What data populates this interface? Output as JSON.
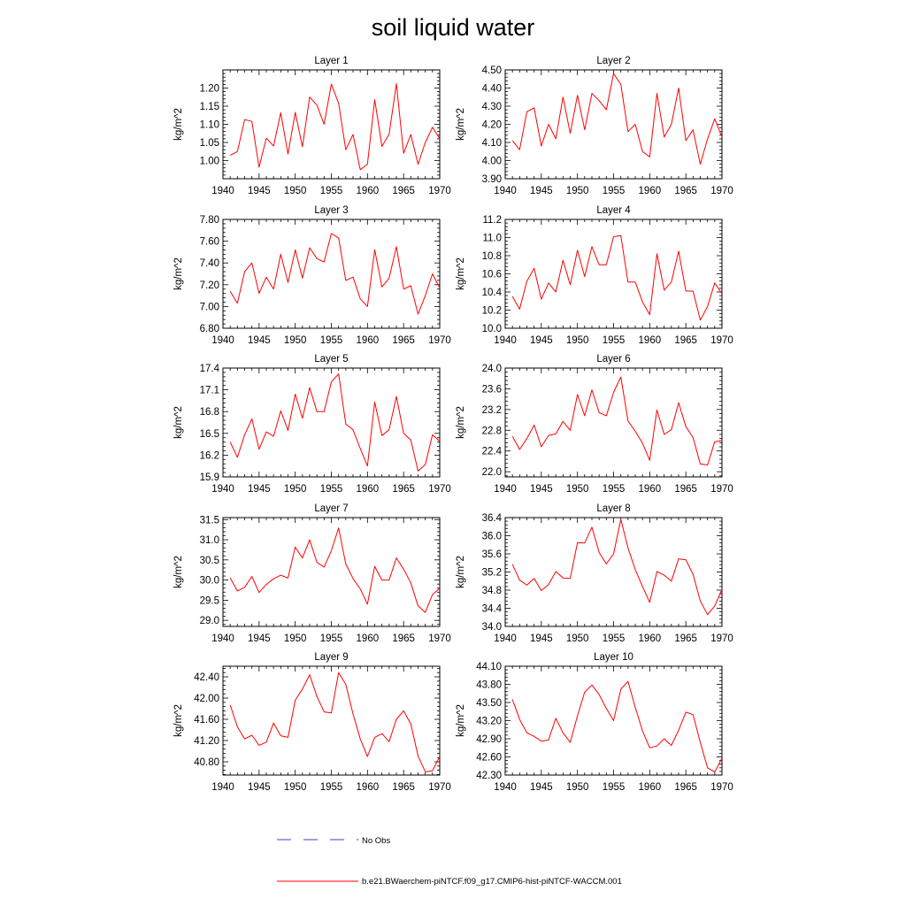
{
  "title": "soil liquid water",
  "legend": [
    {
      "label": "No Obs",
      "color": "#3b3bd6",
      "style": "dashed"
    },
    {
      "label": "b.e21.BWaerchem-piNTCF.f09_g17.CMIP6-hist-piNTCF-WACCM.001",
      "color": "#ff0000",
      "style": "solid"
    }
  ],
  "chart_data": [
    {
      "type": "line",
      "title": "Layer 1",
      "ylabel": "kg/m^2",
      "xlim": [
        1940,
        1970
      ],
      "ylim": [
        0.95,
        1.25
      ],
      "xticks": [
        "1940",
        "1945",
        "1950",
        "1955",
        "1960",
        "1965",
        "1970"
      ],
      "yticks": [
        "1.00",
        "1.05",
        "1.10",
        "1.15",
        "1.20"
      ],
      "series": [
        {
          "color": "#ff0000",
          "x": [
            1941,
            1942,
            1943,
            1944,
            1945,
            1946,
            1947,
            1948,
            1949,
            1950,
            1951,
            1952,
            1953,
            1954,
            1955,
            1956,
            1957,
            1958,
            1959,
            1960,
            1961,
            1962,
            1963,
            1964,
            1965,
            1966,
            1967,
            1968,
            1969,
            1970
          ],
          "values": [
            1.015,
            1.025,
            1.113,
            1.108,
            0.982,
            1.062,
            1.04,
            1.132,
            1.018,
            1.133,
            1.038,
            1.175,
            1.153,
            1.1,
            1.211,
            1.158,
            1.03,
            1.072,
            0.975,
            0.99,
            1.168,
            1.039,
            1.073,
            1.212,
            1.02,
            1.072,
            0.99,
            1.05,
            1.092,
            1.06
          ]
        }
      ]
    },
    {
      "type": "line",
      "title": "Layer 2",
      "ylabel": "kg/m^2",
      "xlim": [
        1940,
        1970
      ],
      "ylim": [
        3.9,
        4.5
      ],
      "xticks": [
        "1940",
        "1945",
        "1950",
        "1955",
        "1960",
        "1965",
        "1970"
      ],
      "yticks": [
        "3.90",
        "4.00",
        "4.10",
        "4.20",
        "4.30",
        "4.40",
        "4.50"
      ],
      "series": [
        {
          "color": "#ff0000",
          "x": [
            1941,
            1942,
            1943,
            1944,
            1945,
            1946,
            1947,
            1948,
            1949,
            1950,
            1951,
            1952,
            1953,
            1954,
            1955,
            1956,
            1957,
            1958,
            1959,
            1960,
            1961,
            1962,
            1963,
            1964,
            1965,
            1966,
            1967,
            1968,
            1969,
            1970
          ],
          "values": [
            4.11,
            4.06,
            4.27,
            4.29,
            4.08,
            4.2,
            4.12,
            4.35,
            4.15,
            4.36,
            4.17,
            4.37,
            4.33,
            4.28,
            4.48,
            4.42,
            4.16,
            4.2,
            4.05,
            4.02,
            4.37,
            4.13,
            4.2,
            4.4,
            4.11,
            4.17,
            3.98,
            4.12,
            4.23,
            4.13
          ]
        }
      ]
    },
    {
      "type": "line",
      "title": "Layer 3",
      "ylabel": "kg/m^2",
      "xlim": [
        1940,
        1970
      ],
      "ylim": [
        6.8,
        7.8
      ],
      "xticks": [
        "1940",
        "1945",
        "1950",
        "1955",
        "1960",
        "1965",
        "1970"
      ],
      "yticks": [
        "6.80",
        "7.00",
        "7.20",
        "7.40",
        "7.60",
        "7.80"
      ],
      "series": [
        {
          "color": "#ff0000",
          "x": [
            1941,
            1942,
            1943,
            1944,
            1945,
            1946,
            1947,
            1948,
            1949,
            1950,
            1951,
            1952,
            1953,
            1954,
            1955,
            1956,
            1957,
            1958,
            1959,
            1960,
            1961,
            1962,
            1963,
            1964,
            1965,
            1966,
            1967,
            1968,
            1969,
            1970
          ],
          "values": [
            7.14,
            7.03,
            7.32,
            7.4,
            7.12,
            7.27,
            7.16,
            7.48,
            7.22,
            7.52,
            7.26,
            7.54,
            7.44,
            7.41,
            7.67,
            7.63,
            7.24,
            7.27,
            7.07,
            7.0,
            7.52,
            7.18,
            7.26,
            7.55,
            7.16,
            7.19,
            6.93,
            7.1,
            7.3,
            7.17
          ]
        }
      ]
    },
    {
      "type": "line",
      "title": "Layer 4",
      "ylabel": "kg/m^2",
      "xlim": [
        1940,
        1970
      ],
      "ylim": [
        10.0,
        11.2
      ],
      "xticks": [
        "1940",
        "1945",
        "1950",
        "1955",
        "1960",
        "1965",
        "1970"
      ],
      "yticks": [
        "10.0",
        "10.2",
        "10.4",
        "10.6",
        "10.8",
        "11.0",
        "11.2"
      ],
      "series": [
        {
          "color": "#ff0000",
          "x": [
            1941,
            1942,
            1943,
            1944,
            1945,
            1946,
            1947,
            1948,
            1949,
            1950,
            1951,
            1952,
            1953,
            1954,
            1955,
            1956,
            1957,
            1958,
            1959,
            1960,
            1961,
            1962,
            1963,
            1964,
            1965,
            1966,
            1967,
            1968,
            1969,
            1970
          ],
          "values": [
            10.35,
            10.21,
            10.52,
            10.66,
            10.32,
            10.5,
            10.4,
            10.75,
            10.48,
            10.86,
            10.57,
            10.9,
            10.7,
            10.7,
            11.01,
            11.02,
            10.51,
            10.51,
            10.29,
            10.15,
            10.82,
            10.42,
            10.51,
            10.85,
            10.41,
            10.41,
            10.09,
            10.24,
            10.5,
            10.38
          ]
        }
      ]
    },
    {
      "type": "line",
      "title": "Layer 5",
      "ylabel": "kg/m^2",
      "xlim": [
        1940,
        1970
      ],
      "ylim": [
        15.9,
        17.4
      ],
      "xticks": [
        "1940",
        "1945",
        "1950",
        "1955",
        "1960",
        "1965",
        "1970"
      ],
      "yticks": [
        "15.9",
        "16.2",
        "16.5",
        "16.8",
        "17.1",
        "17.4"
      ],
      "series": [
        {
          "color": "#ff0000",
          "x": [
            1941,
            1942,
            1943,
            1944,
            1945,
            1946,
            1947,
            1948,
            1949,
            1950,
            1951,
            1952,
            1953,
            1954,
            1955,
            1956,
            1957,
            1958,
            1959,
            1960,
            1961,
            1962,
            1963,
            1964,
            1965,
            1966,
            1967,
            1968,
            1969,
            1970
          ],
          "values": [
            16.38,
            16.17,
            16.48,
            16.7,
            16.28,
            16.52,
            16.46,
            16.81,
            16.54,
            17.04,
            16.71,
            17.13,
            16.8,
            16.8,
            17.21,
            17.32,
            16.63,
            16.55,
            16.29,
            16.05,
            16.93,
            16.47,
            16.55,
            17.01,
            16.5,
            16.41,
            15.98,
            16.07,
            16.48,
            16.39
          ]
        }
      ]
    },
    {
      "type": "line",
      "title": "Layer 6",
      "ylabel": "kg/m^2",
      "xlim": [
        1940,
        1970
      ],
      "ylim": [
        21.9,
        24.0
      ],
      "xticks": [
        "1940",
        "1945",
        "1950",
        "1955",
        "1960",
        "1965",
        "1970"
      ],
      "yticks": [
        "22.0",
        "22.4",
        "22.8",
        "23.2",
        "23.6",
        "24.0"
      ],
      "series": [
        {
          "color": "#ff0000",
          "x": [
            1941,
            1942,
            1943,
            1944,
            1945,
            1946,
            1947,
            1948,
            1949,
            1950,
            1951,
            1952,
            1953,
            1954,
            1955,
            1956,
            1957,
            1958,
            1959,
            1960,
            1961,
            1962,
            1963,
            1964,
            1965,
            1966,
            1967,
            1968,
            1969,
            1970
          ],
          "values": [
            22.68,
            22.43,
            22.64,
            22.9,
            22.48,
            22.7,
            22.73,
            22.97,
            22.8,
            23.49,
            23.08,
            23.58,
            23.14,
            23.08,
            23.53,
            23.83,
            22.98,
            22.78,
            22.55,
            22.22,
            23.19,
            22.72,
            22.81,
            23.33,
            22.87,
            22.66,
            22.15,
            22.13,
            22.58,
            22.6
          ]
        }
      ]
    },
    {
      "type": "line",
      "title": "Layer 7",
      "ylabel": "kg/m^2",
      "xlim": [
        1940,
        1970
      ],
      "ylim": [
        28.85,
        31.55
      ],
      "xticks": [
        "1940",
        "1945",
        "1950",
        "1955",
        "1960",
        "1965",
        "1970"
      ],
      "yticks": [
        "29.0",
        "29.5",
        "30.0",
        "30.5",
        "31.0",
        "31.5"
      ],
      "series": [
        {
          "color": "#ff0000",
          "x": [
            1941,
            1942,
            1943,
            1944,
            1945,
            1946,
            1947,
            1948,
            1949,
            1950,
            1951,
            1952,
            1953,
            1954,
            1955,
            1956,
            1957,
            1958,
            1959,
            1960,
            1961,
            1962,
            1963,
            1964,
            1965,
            1966,
            1967,
            1968,
            1969,
            1970
          ],
          "values": [
            30.05,
            29.73,
            29.82,
            30.09,
            29.69,
            29.89,
            30.03,
            30.12,
            30.05,
            30.82,
            30.55,
            31.0,
            30.44,
            30.32,
            30.73,
            31.29,
            30.4,
            30.04,
            29.78,
            29.4,
            30.34,
            30.0,
            30.0,
            30.55,
            30.27,
            29.93,
            29.36,
            29.2,
            29.64,
            29.8
          ]
        }
      ]
    },
    {
      "type": "line",
      "title": "Layer 8",
      "ylabel": "kg/m^2",
      "xlim": [
        1940,
        1970
      ],
      "ylim": [
        34.0,
        36.4
      ],
      "xticks": [
        "1940",
        "1945",
        "1950",
        "1955",
        "1960",
        "1965",
        "1970"
      ],
      "yticks": [
        "34.0",
        "34.4",
        "34.8",
        "35.2",
        "35.6",
        "36.0",
        "36.4"
      ],
      "series": [
        {
          "color": "#ff0000",
          "x": [
            1941,
            1942,
            1943,
            1944,
            1945,
            1946,
            1947,
            1948,
            1949,
            1950,
            1951,
            1952,
            1953,
            1954,
            1955,
            1956,
            1957,
            1958,
            1959,
            1960,
            1961,
            1962,
            1963,
            1964,
            1965,
            1966,
            1967,
            1968,
            1969,
            1970
          ],
          "values": [
            35.37,
            35.02,
            34.91,
            35.06,
            34.79,
            34.92,
            35.21,
            35.07,
            35.06,
            35.85,
            35.84,
            36.19,
            35.63,
            35.38,
            35.6,
            36.36,
            35.73,
            35.25,
            34.88,
            34.53,
            35.21,
            35.13,
            35.0,
            35.49,
            35.47,
            35.15,
            34.56,
            34.26,
            34.45,
            34.82
          ]
        }
      ]
    },
    {
      "type": "line",
      "title": "Layer 9",
      "ylabel": "kg/m^2",
      "xlim": [
        1940,
        1970
      ],
      "ylim": [
        40.55,
        42.6
      ],
      "xticks": [
        "1940",
        "1945",
        "1950",
        "1955",
        "1960",
        "1965",
        "1970"
      ],
      "yticks": [
        "40.80",
        "41.20",
        "41.60",
        "42.00",
        "42.40"
      ],
      "series": [
        {
          "color": "#ff0000",
          "x": [
            1941,
            1942,
            1943,
            1944,
            1945,
            1946,
            1947,
            1948,
            1949,
            1950,
            1951,
            1952,
            1953,
            1954,
            1955,
            1956,
            1957,
            1958,
            1959,
            1960,
            1961,
            1962,
            1963,
            1964,
            1965,
            1966,
            1967,
            1968,
            1969,
            1970
          ],
          "values": [
            41.87,
            41.46,
            41.23,
            41.3,
            41.11,
            41.17,
            41.53,
            41.29,
            41.26,
            41.96,
            42.17,
            42.44,
            42.03,
            41.74,
            41.72,
            42.48,
            42.26,
            41.7,
            41.23,
            40.9,
            41.26,
            41.33,
            41.18,
            41.6,
            41.76,
            41.51,
            40.91,
            40.61,
            40.63,
            40.9
          ]
        }
      ]
    },
    {
      "type": "line",
      "title": "Layer 10",
      "ylabel": "kg/m^2",
      "xlim": [
        1940,
        1970
      ],
      "ylim": [
        42.3,
        44.1
      ],
      "xticks": [
        "1940",
        "1945",
        "1950",
        "1955",
        "1960",
        "1965",
        "1970"
      ],
      "yticks": [
        "42.30",
        "42.60",
        "42.90",
        "43.20",
        "43.50",
        "43.80",
        "44.10"
      ],
      "series": [
        {
          "color": "#ff0000",
          "x": [
            1941,
            1942,
            1943,
            1944,
            1945,
            1946,
            1947,
            1948,
            1949,
            1950,
            1951,
            1952,
            1953,
            1954,
            1955,
            1956,
            1957,
            1958,
            1959,
            1960,
            1961,
            1962,
            1963,
            1964,
            1965,
            1966,
            1967,
            1968,
            1969,
            1970
          ],
          "values": [
            43.55,
            43.22,
            43.0,
            42.94,
            42.86,
            42.88,
            43.24,
            43.0,
            42.84,
            43.28,
            43.67,
            43.79,
            43.63,
            43.4,
            43.2,
            43.72,
            43.85,
            43.42,
            43.03,
            42.75,
            42.78,
            42.9,
            42.79,
            43.04,
            43.34,
            43.3,
            42.84,
            42.42,
            42.35,
            42.58
          ]
        }
      ]
    }
  ]
}
